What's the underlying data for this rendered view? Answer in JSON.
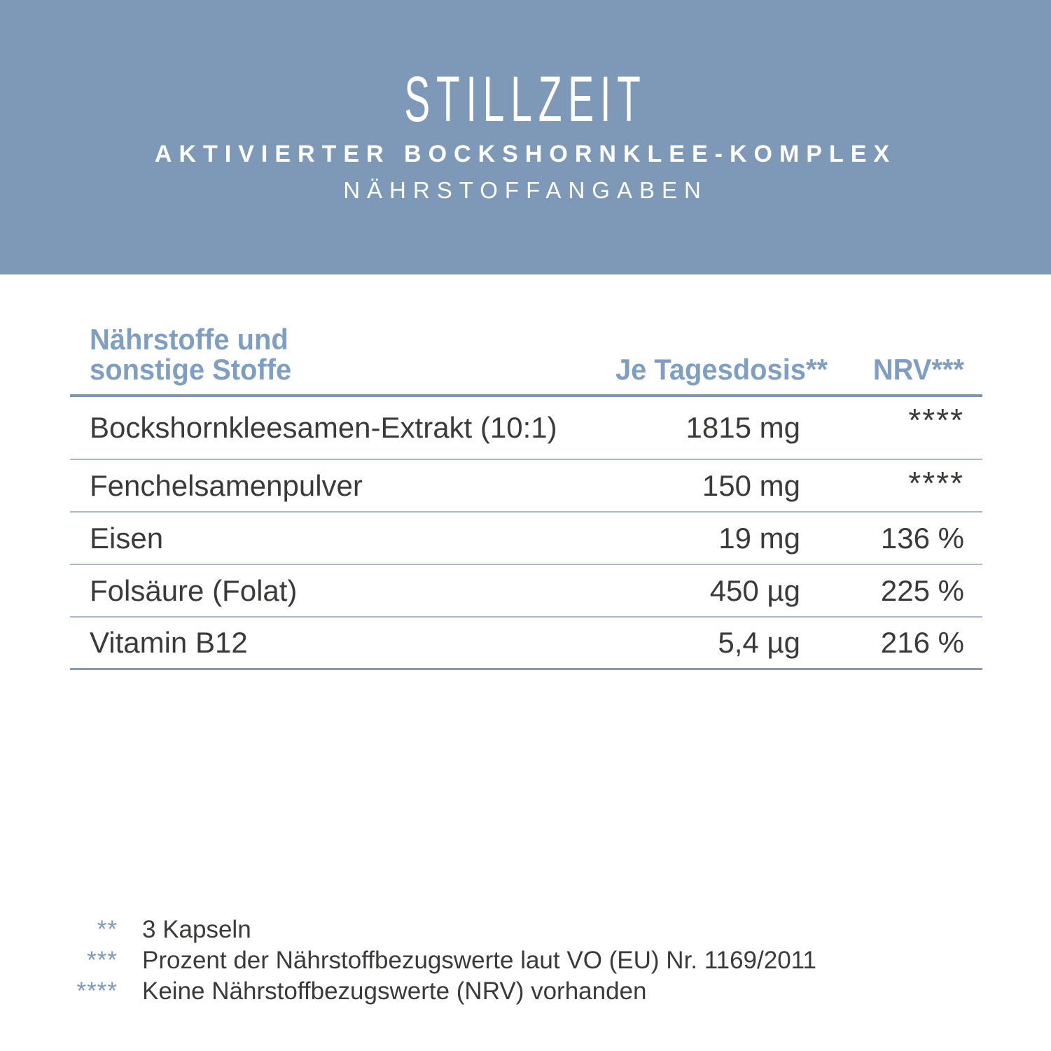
{
  "banner": {
    "title": "STILLZEIT",
    "subtitle": "AKTIVIERTER BOCKSHORNKLEE-KOMPLEX",
    "section": "NÄHRSTOFFANGABEN"
  },
  "table": {
    "header": {
      "nutrients_line1": "Nährstoffe und",
      "nutrients_line2": "sonstige Stoffe",
      "dose": "Je Tagesdosis**",
      "nrv": "NRV***"
    },
    "rows": [
      {
        "label": "Bockshornkleesamen-Extrakt (10:1)",
        "amount": "1815 mg",
        "nrv": "****"
      },
      {
        "label": "Fenchelsamenpulver",
        "amount": "150 mg",
        "nrv": "****"
      },
      {
        "label": "Eisen",
        "amount": "19 mg",
        "nrv": "136 %"
      },
      {
        "label": "Folsäure (Folat)",
        "amount": "450 µg",
        "nrv": "225 %"
      },
      {
        "label": "Vitamin B12",
        "amount": "5,4 µg",
        "nrv": "216 %"
      }
    ]
  },
  "footnotes": [
    {
      "marker": "**",
      "text": "3 Kapseln"
    },
    {
      "marker": "***",
      "text": "Prozent der Nährstoffbezugswerte laut VO (EU) Nr. 1169/2011"
    },
    {
      "marker": "****",
      "text": "Keine Nährstoffbezugswerte (NRV) vorhanden"
    }
  ],
  "colors": {
    "banner_blue": "#7e99b8",
    "header_text_blue": "#7f9fc2",
    "rule_thick_blue": "#7e98b8",
    "rule_thin_blue": "#a9bccf",
    "rule_bottom_gray": "#8b9aaa",
    "footnote_marker_blue": "#7e9abb",
    "body_text": "#3a3a39",
    "background": "#ffffff",
    "banner_text": "#ffffff"
  }
}
